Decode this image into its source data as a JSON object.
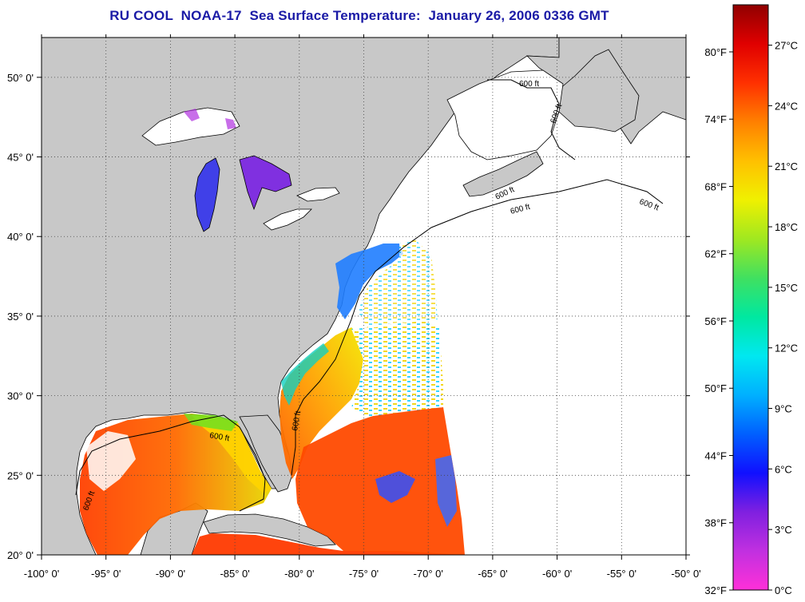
{
  "title": "RU COOL  NOAA-17  Sea Surface Temperature:  January 26, 2006 0336 GMT",
  "map": {
    "lon_ticks": [
      "-100° 0'",
      "-95° 0'",
      "-90° 0'",
      "-85° 0'",
      "-80° 0'",
      "-75° 0'",
      "-70° 0'",
      "-65° 0'",
      "-60° 0'",
      "-55° 0'",
      "-50° 0'"
    ],
    "lat_ticks": [
      "20° 0'",
      "25° 0'",
      "30° 0'",
      "35° 0'",
      "40° 0'",
      "45° 0'",
      "50° 0'"
    ],
    "lon_range": [
      -100,
      -50
    ],
    "lat_range": [
      20,
      52.5
    ],
    "isobath_label": "600 ft",
    "colors": {
      "land": "#c8c8c8",
      "no_data": "#ffffff",
      "grid": "#333333",
      "title": "#1a1aa6"
    }
  },
  "colorbar": {
    "fahrenheit_labels": [
      "80°F",
      "74°F",
      "68°F",
      "62°F",
      "56°F",
      "50°F",
      "44°F",
      "38°F",
      "32°F"
    ],
    "celsius_labels": [
      "27°C",
      "24°C",
      "21°C",
      "18°C",
      "15°C",
      "12°C",
      "9°C",
      "6°C",
      "3°C",
      "0°C"
    ],
    "fahrenheit_values": [
      80,
      74,
      68,
      62,
      56,
      50,
      44,
      38,
      32
    ],
    "celsius_values": [
      27,
      24,
      21,
      18,
      15,
      12,
      9,
      6,
      3,
      0
    ],
    "range_c": [
      0,
      29
    ],
    "gradient": [
      "#ff30d8",
      "#c030e0",
      "#8020e0",
      "#1010ff",
      "#0060ff",
      "#00b0ff",
      "#00e8f0",
      "#00e8a0",
      "#40e060",
      "#a0e820",
      "#f0f000",
      "#ffc000",
      "#ff8000",
      "#ff3000",
      "#e00000",
      "#900000"
    ]
  }
}
